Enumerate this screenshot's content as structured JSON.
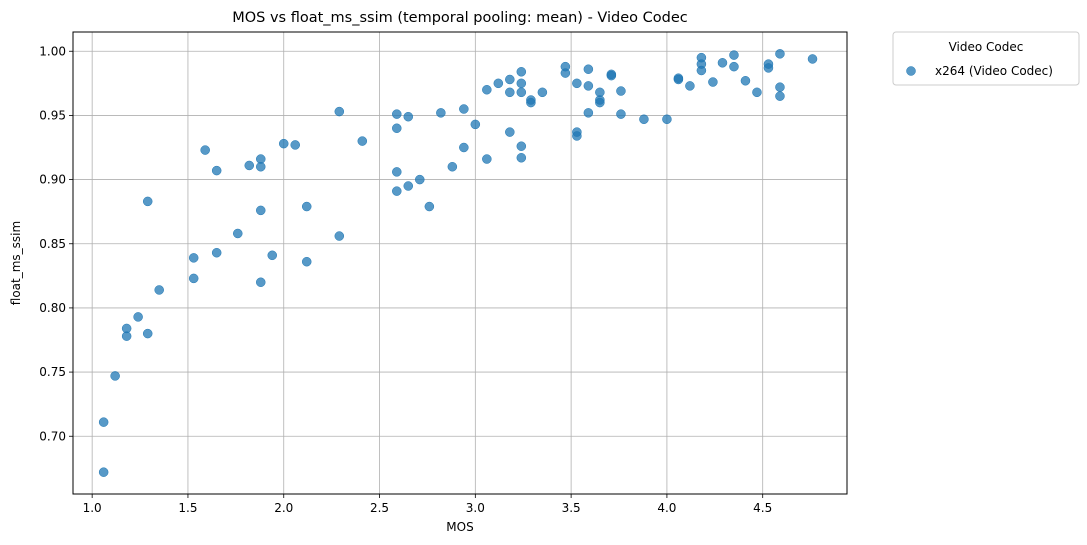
{
  "chart_data": {
    "type": "scatter",
    "title": "MOS vs float_ms_ssim (temporal pooling: mean) - Video Codec",
    "xlabel": "MOS",
    "ylabel": "float_ms_ssim",
    "xlim": [
      0.9,
      4.94
    ],
    "ylim": [
      0.655,
      1.015
    ],
    "xticks": [
      1.0,
      1.5,
      2.0,
      2.5,
      3.0,
      3.5,
      4.0,
      4.5
    ],
    "xtick_labels": [
      "1.0",
      "1.5",
      "2.0",
      "2.5",
      "3.0",
      "3.5",
      "4.0",
      "4.5"
    ],
    "yticks": [
      0.7,
      0.75,
      0.8,
      0.85,
      0.9,
      0.95,
      1.0
    ],
    "ytick_labels": [
      "0.70",
      "0.75",
      "0.80",
      "0.85",
      "0.90",
      "0.95",
      "1.00"
    ],
    "grid": true,
    "legend": {
      "title": "Video Codec",
      "placement": "outside-top-right"
    },
    "series": [
      {
        "name": "x264 (Video Codec)",
        "color": "#1f77b4",
        "points": [
          [
            1.06,
            0.711
          ],
          [
            1.06,
            0.672
          ],
          [
            1.12,
            0.747
          ],
          [
            1.18,
            0.778
          ],
          [
            1.18,
            0.784
          ],
          [
            1.24,
            0.793
          ],
          [
            1.29,
            0.78
          ],
          [
            1.29,
            0.883
          ],
          [
            1.35,
            0.814
          ],
          [
            1.53,
            0.823
          ],
          [
            1.53,
            0.839
          ],
          [
            1.59,
            0.923
          ],
          [
            1.65,
            0.907
          ],
          [
            1.65,
            0.843
          ],
          [
            1.76,
            0.858
          ],
          [
            1.82,
            0.911
          ],
          [
            1.88,
            0.916
          ],
          [
            1.88,
            0.91
          ],
          [
            1.88,
            0.876
          ],
          [
            1.88,
            0.82
          ],
          [
            1.94,
            0.841
          ],
          [
            2.0,
            0.928
          ],
          [
            2.06,
            0.927
          ],
          [
            2.12,
            0.879
          ],
          [
            2.12,
            0.836
          ],
          [
            2.29,
            0.953
          ],
          [
            2.29,
            0.856
          ],
          [
            2.41,
            0.93
          ],
          [
            2.59,
            0.951
          ],
          [
            2.59,
            0.94
          ],
          [
            2.59,
            0.906
          ],
          [
            2.59,
            0.891
          ],
          [
            2.65,
            0.949
          ],
          [
            2.65,
            0.895
          ],
          [
            2.71,
            0.9
          ],
          [
            2.76,
            0.879
          ],
          [
            2.82,
            0.952
          ],
          [
            2.88,
            0.91
          ],
          [
            2.94,
            0.955
          ],
          [
            2.94,
            0.925
          ],
          [
            3.0,
            0.943
          ],
          [
            3.06,
            0.97
          ],
          [
            3.06,
            0.916
          ],
          [
            3.12,
            0.975
          ],
          [
            3.18,
            0.978
          ],
          [
            3.18,
            0.968
          ],
          [
            3.18,
            0.937
          ],
          [
            3.24,
            0.984
          ],
          [
            3.24,
            0.975
          ],
          [
            3.24,
            0.968
          ],
          [
            3.24,
            0.926
          ],
          [
            3.24,
            0.917
          ],
          [
            3.29,
            0.962
          ],
          [
            3.29,
            0.96
          ],
          [
            3.35,
            0.968
          ],
          [
            3.47,
            0.988
          ],
          [
            3.47,
            0.983
          ],
          [
            3.53,
            0.975
          ],
          [
            3.53,
            0.937
          ],
          [
            3.53,
            0.934
          ],
          [
            3.59,
            0.986
          ],
          [
            3.59,
            0.973
          ],
          [
            3.59,
            0.952
          ],
          [
            3.65,
            0.968
          ],
          [
            3.65,
            0.962
          ],
          [
            3.65,
            0.96
          ],
          [
            3.71,
            0.982
          ],
          [
            3.71,
            0.981
          ],
          [
            3.76,
            0.969
          ],
          [
            3.76,
            0.951
          ],
          [
            3.88,
            0.947
          ],
          [
            4.0,
            0.947
          ],
          [
            4.06,
            0.979
          ],
          [
            4.06,
            0.978
          ],
          [
            4.12,
            0.973
          ],
          [
            4.18,
            0.995
          ],
          [
            4.18,
            0.99
          ],
          [
            4.18,
            0.985
          ],
          [
            4.24,
            0.976
          ],
          [
            4.29,
            0.991
          ],
          [
            4.35,
            0.997
          ],
          [
            4.35,
            0.988
          ],
          [
            4.41,
            0.977
          ],
          [
            4.47,
            0.968
          ],
          [
            4.53,
            0.99
          ],
          [
            4.53,
            0.987
          ],
          [
            4.59,
            0.998
          ],
          [
            4.59,
            0.972
          ],
          [
            4.59,
            0.965
          ],
          [
            4.76,
            0.994
          ]
        ]
      }
    ]
  }
}
